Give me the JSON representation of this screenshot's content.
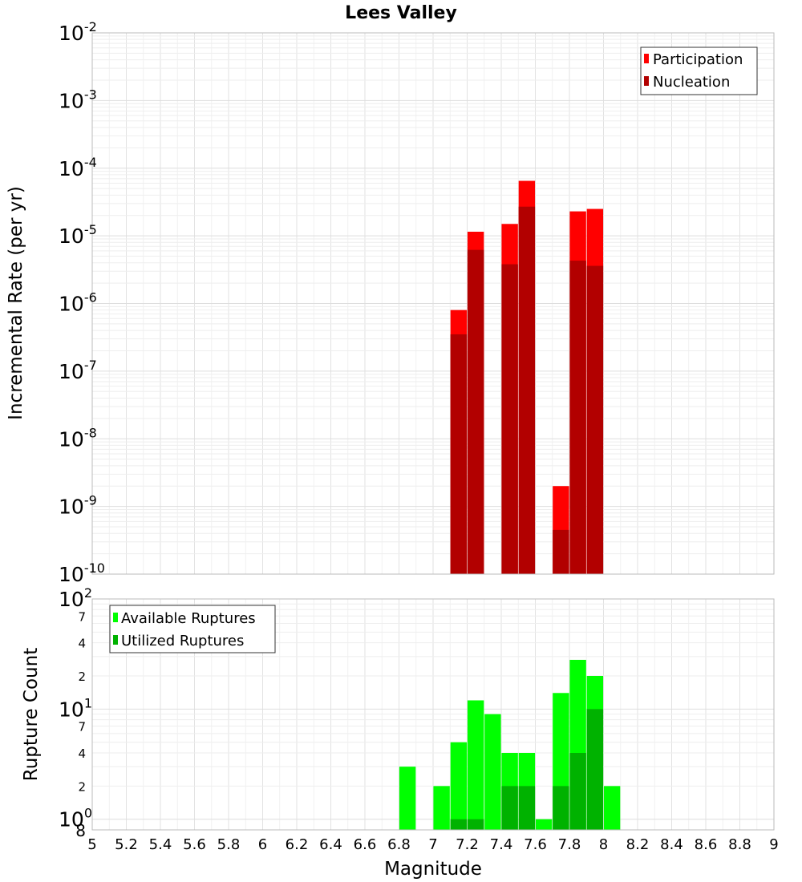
{
  "chart_data": [
    {
      "type": "bar",
      "title": "Lees Valley",
      "ylabel": "Incremental Rate (per yr)",
      "yscale": "log",
      "ylim": [
        1e-10,
        0.01
      ],
      "xlim": [
        5,
        9
      ],
      "y_tick_exponents": [
        "-2",
        "-3",
        "-4",
        "-5",
        "-6",
        "-7",
        "-8",
        "-9",
        "-10"
      ],
      "legend_position": "top-right",
      "grid": true,
      "series": [
        {
          "name": "Participation",
          "color": "#ff0000",
          "x": [
            7.15,
            7.25,
            7.45,
            7.55,
            7.75,
            7.85,
            7.95
          ],
          "values": [
            8e-07,
            1.15e-05,
            1.5e-05,
            6.5e-05,
            2e-09,
            2.3e-05,
            2.5e-05
          ]
        },
        {
          "name": "Nucleation",
          "color": "#b20000",
          "x": [
            7.15,
            7.25,
            7.45,
            7.55,
            7.75,
            7.85,
            7.95
          ],
          "values": [
            3.5e-07,
            6.2e-06,
            3.8e-06,
            2.7e-05,
            4.5e-10,
            4.3e-06,
            3.6e-06
          ]
        }
      ]
    },
    {
      "type": "bar",
      "xlabel": "Magnitude",
      "ylabel": "Rupture Count",
      "yscale": "log",
      "ylim": [
        0.8,
        100
      ],
      "xlim": [
        5,
        9
      ],
      "x_ticks": [
        "5",
        "5.2",
        "5.4",
        "5.6",
        "5.8",
        "6",
        "6.2",
        "6.4",
        "6.6",
        "6.8",
        "7",
        "7.2",
        "7.4",
        "7.6",
        "7.8",
        "8",
        "8.2",
        "8.4",
        "8.6",
        "8.8",
        "9"
      ],
      "legend_position": "top-left",
      "grid": true,
      "series": [
        {
          "name": "Available Ruptures",
          "color": "#00ff00",
          "x": [
            6.85,
            7.05,
            7.15,
            7.25,
            7.35,
            7.45,
            7.55,
            7.65,
            7.75,
            7.85,
            7.95,
            8.05
          ],
          "values": [
            3,
            2,
            5,
            12,
            9,
            4,
            4,
            1,
            14,
            28,
            20,
            2
          ]
        },
        {
          "name": "Utilized Ruptures",
          "color": "#00b200",
          "x": [
            7.15,
            7.25,
            7.45,
            7.55,
            7.75,
            7.85,
            7.95
          ],
          "values": [
            1,
            1,
            2,
            2,
            2,
            4,
            10
          ]
        }
      ]
    }
  ]
}
